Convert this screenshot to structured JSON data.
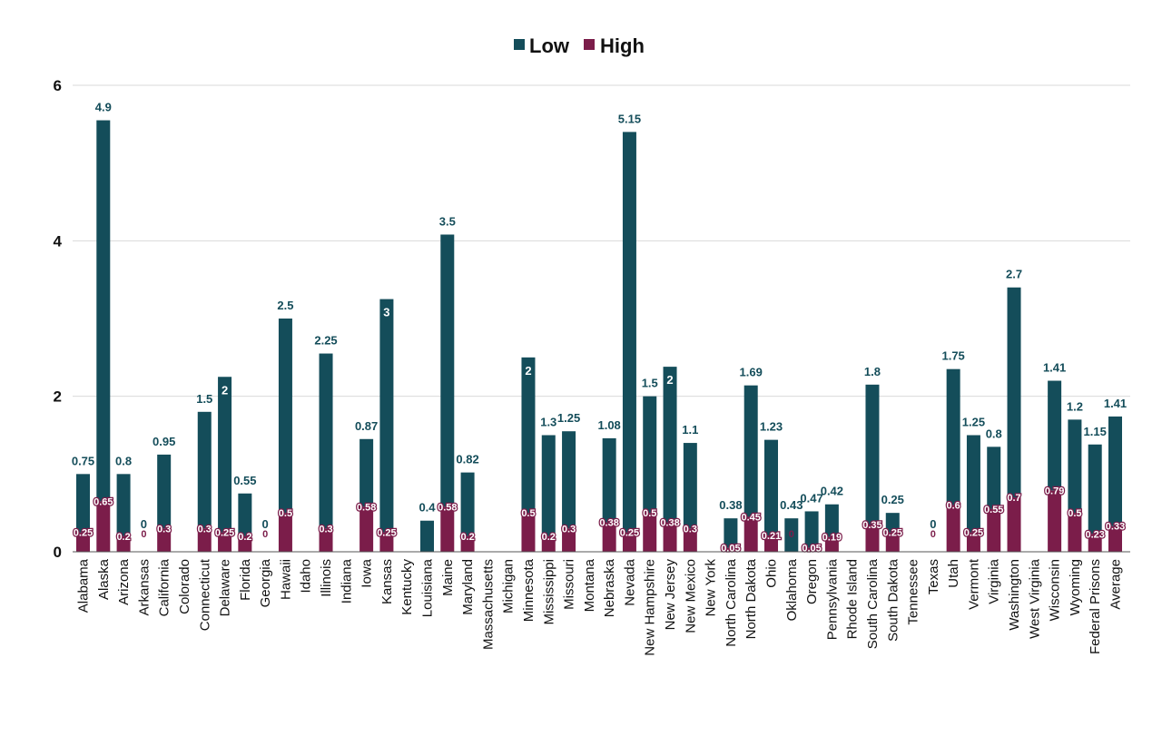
{
  "chart_data": {
    "type": "bar",
    "stacked": true,
    "legend_position": "top-center",
    "grid": true,
    "ylim": [
      0,
      6
    ],
    "yticks": [
      "0",
      "2",
      "4",
      "6"
    ],
    "categories": [
      "Alabama",
      "Alaska",
      "Arizona",
      "Arkansas",
      "California",
      "Colorado",
      "Connecticut",
      "Delaware",
      "Florida",
      "Georgia",
      "Hawaii",
      "Idaho",
      "Illinois",
      "Indiana",
      "Iowa",
      "Kansas",
      "Kentucky",
      "Louisiana",
      "Maine",
      "Maryland",
      "Massachusetts",
      "Michigan",
      "Minnesota",
      "Mississippi",
      "Missouri",
      "Montana",
      "Nebraska",
      "Nevada",
      "New Hampshire",
      "New Jersey",
      "New Mexico",
      "New York",
      "North Carolina",
      "North Dakota",
      "Ohio",
      "Oklahoma",
      "Oregon",
      "Pennsylvania",
      "Rhode Island",
      "South Carolina",
      "South Dakota",
      "Tennessee",
      "Texas",
      "Utah",
      "Vermont",
      "Virginia",
      "Washington",
      "West Virginia",
      "Wisconsin",
      "Wyoming",
      "Federal Prisons",
      "Average"
    ],
    "series": [
      {
        "name": "Low",
        "color": "#144d5a",
        "values": [
          0.75,
          4.9,
          0.8,
          0,
          0.95,
          null,
          1.5,
          2,
          0.55,
          0,
          2.5,
          null,
          2.25,
          null,
          0.87,
          3,
          null,
          0.4,
          3.5,
          0.82,
          null,
          null,
          2,
          1.3,
          1.25,
          null,
          1.08,
          5.15,
          1.5,
          2,
          1.1,
          null,
          0.38,
          1.69,
          1.23,
          0.43,
          0.47,
          0.42,
          null,
          1.8,
          0.25,
          null,
          0,
          1.75,
          1.25,
          0.8,
          2.7,
          null,
          1.41,
          1.2,
          1.15,
          1.41
        ],
        "labels": [
          "0.75",
          "4.9",
          "0.8",
          "0",
          "0.95",
          "",
          "1.5",
          "2",
          "0.55",
          "0",
          "2.5",
          "",
          "2.25",
          "",
          "0.87",
          "3",
          "",
          "0.4",
          "3.5",
          "0.82",
          "",
          "",
          "2",
          "1.3",
          "1.25",
          "",
          "1.08",
          "5.15",
          "1.5",
          "2",
          "1.1",
          "",
          "0.38",
          "1.69",
          "1.23",
          "0.43",
          "0.47",
          "0.42",
          "",
          "1.8",
          "0.25",
          "",
          "0",
          "1.75",
          "1.25",
          "0.8",
          "2.7",
          "",
          "1.41",
          "1.2",
          "1.15",
          "1.41"
        ]
      },
      {
        "name": "High",
        "color": "#7b1d4a",
        "values": [
          0.25,
          0.65,
          0.2,
          0,
          0.3,
          null,
          0.3,
          0.25,
          0.2,
          0,
          0.5,
          null,
          0.3,
          null,
          0.58,
          0.25,
          null,
          null,
          0.58,
          0.2,
          null,
          null,
          0.5,
          0.2,
          0.3,
          null,
          0.38,
          0.25,
          0.5,
          0.38,
          0.3,
          null,
          0.05,
          0.45,
          0.21,
          0,
          0.05,
          0.19,
          null,
          0.35,
          0.25,
          null,
          0,
          0.6,
          0.25,
          0.55,
          0.7,
          null,
          0.79,
          0.5,
          0.23,
          0.33
        ],
        "labels": [
          "0.25",
          "0.65",
          "0.2",
          "0",
          "0.3",
          "",
          "0.3",
          "0.25",
          "0.2",
          "0",
          "0.5",
          "",
          "0.3",
          "",
          "0.58",
          "0.25",
          "",
          "",
          "0.58",
          "0.2",
          "",
          "",
          "0.5",
          "0.2",
          "0.3",
          "",
          "0.38",
          "0.25",
          "0.5",
          "0.38",
          "0.3",
          "",
          "0.05",
          "0.45",
          "0.21",
          "0",
          "0.05",
          "0.19",
          "",
          "0.35",
          "0.25",
          "",
          "0",
          "0.6",
          "0.25",
          "0.55",
          "0.7",
          "",
          "0.79",
          "0.5",
          "0.23",
          "0.33"
        ]
      }
    ]
  }
}
